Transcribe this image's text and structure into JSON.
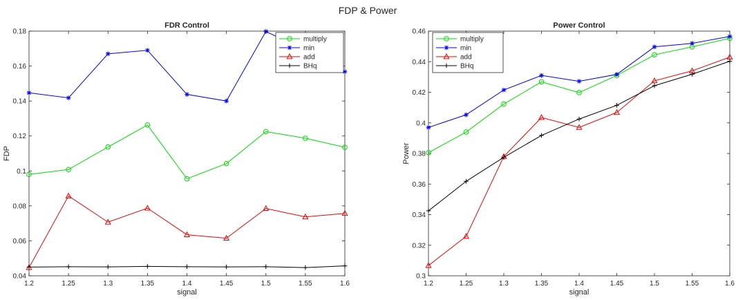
{
  "figure_title": "FDP & Power",
  "chart_data": [
    {
      "type": "line",
      "title": "FDR Control",
      "xlabel": "signal",
      "ylabel": "FDP",
      "x": [
        1.2,
        1.25,
        1.3,
        1.35,
        1.4,
        1.45,
        1.5,
        1.55,
        1.6
      ],
      "xlim": [
        1.2,
        1.6
      ],
      "ylim": [
        0.04,
        0.18
      ],
      "xticks": [
        "1.2",
        "1.25",
        "1.3",
        "1.35",
        "1.4",
        "1.45",
        "1.5",
        "1.55",
        "1.6"
      ],
      "yticks": [
        "0.04",
        "0.06",
        "0.08",
        "0.1",
        "0.12",
        "0.14",
        "0.16",
        "0.18"
      ],
      "ytick_values": [
        0.04,
        0.06,
        0.08,
        0.1,
        0.12,
        0.14,
        0.16,
        0.18
      ],
      "legend": "top-right",
      "grid": false,
      "series": [
        {
          "name": "multiply",
          "color": "#00dd00",
          "marker": "circle",
          "values": [
            0.098,
            0.1008,
            0.1137,
            0.1263,
            0.0955,
            0.1042,
            0.1225,
            0.1187,
            0.1135
          ]
        },
        {
          "name": "min",
          "color": "#0000ee",
          "marker": "star",
          "values": [
            0.1447,
            0.1418,
            0.167,
            0.169,
            0.1438,
            0.14,
            0.1798,
            0.169,
            0.1568
          ]
        },
        {
          "name": "add",
          "color": "#ee0000",
          "marker": "triangle",
          "values": [
            0.0447,
            0.0857,
            0.0707,
            0.0787,
            0.0635,
            0.0615,
            0.0785,
            0.0737,
            0.0757
          ]
        },
        {
          "name": "BHq",
          "color": "#000000",
          "marker": "plus",
          "values": [
            0.045,
            0.0452,
            0.0451,
            0.0454,
            0.0452,
            0.0451,
            0.0452,
            0.0447,
            0.0457
          ]
        }
      ]
    },
    {
      "type": "line",
      "title": "Power Control",
      "xlabel": "signal",
      "ylabel": "Power",
      "x": [
        1.2,
        1.25,
        1.3,
        1.35,
        1.4,
        1.45,
        1.5,
        1.55,
        1.6
      ],
      "xlim": [
        1.2,
        1.6
      ],
      "ylim": [
        0.3,
        0.46
      ],
      "xticks": [
        "1.2",
        "1.25",
        "1.3",
        "1.35",
        "1.4",
        "1.45",
        "1.5",
        "1.55",
        "1.6"
      ],
      "yticks": [
        "0.3",
        "0.32",
        "0.34",
        "0.36",
        "0.38",
        "0.4",
        "0.42",
        "0.44",
        "0.46"
      ],
      "ytick_values": [
        0.3,
        0.32,
        0.34,
        0.36,
        0.38,
        0.4,
        0.42,
        0.44,
        0.46
      ],
      "legend": "top-left",
      "grid": false,
      "series": [
        {
          "name": "multiply",
          "color": "#00dd00",
          "marker": "circle",
          "values": [
            0.3805,
            0.394,
            0.4123,
            0.4268,
            0.4198,
            0.431,
            0.4445,
            0.4497,
            0.4553
          ]
        },
        {
          "name": "min",
          "color": "#0000ee",
          "marker": "star",
          "values": [
            0.397,
            0.4053,
            0.4215,
            0.431,
            0.4272,
            0.4317,
            0.4497,
            0.452,
            0.4565
          ]
        },
        {
          "name": "add",
          "color": "#ee0000",
          "marker": "triangle",
          "values": [
            0.3067,
            0.3258,
            0.378,
            0.4035,
            0.397,
            0.4068,
            0.4275,
            0.434,
            0.443
          ]
        },
        {
          "name": "BHq",
          "color": "#000000",
          "marker": "plus",
          "values": [
            0.3425,
            0.3618,
            0.3775,
            0.3918,
            0.4025,
            0.4115,
            0.4243,
            0.4318,
            0.4403
          ]
        }
      ]
    }
  ]
}
